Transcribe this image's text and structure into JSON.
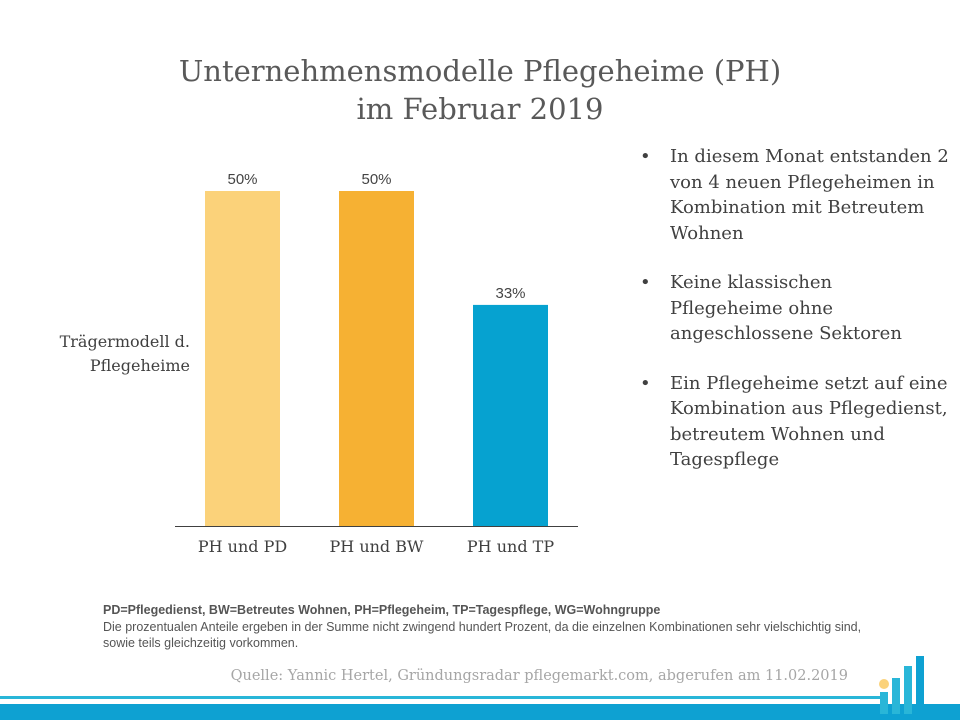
{
  "title": {
    "line1": "Unternehmensmodelle Pflegeheime (PH)",
    "line2": "im Februar 2019"
  },
  "chart_data": {
    "type": "bar",
    "title": "Unternehmensmodelle Pflegeheime (PH) im Februar 2019",
    "ylabel": "Trägermodell d. Pflegeheime",
    "categories": [
      "PH und PD",
      "PH und BW",
      "PH und TP"
    ],
    "values": [
      50,
      50,
      33
    ],
    "value_labels": [
      "50%",
      "50%",
      "33%"
    ],
    "colors": [
      "#fbd27a",
      "#f6b133",
      "#06a2d0"
    ],
    "ylim": [
      0,
      60
    ],
    "grid": false
  },
  "y_axis": {
    "line1": "Trägermodell d.",
    "line2": "Pflegeheime"
  },
  "bullets": {
    "marker": "•",
    "items": [
      "In diesem Monat entstanden 2 von 4 neuen Pflegeheimen in Kombination mit Betreutem Wohnen",
      "Keine klassischen Pflegeheime ohne angeschlossene Sektoren",
      "Ein Pflegeheime setzt auf eine Kombination aus Pflegedienst, betreutem Wohnen und Tagespflege"
    ]
  },
  "footnote": {
    "abbreviations": "PD=Pflegedienst, BW=Betreutes Wohnen, PH=Pflegeheim, TP=Tagespflege, WG=Wohngruppe",
    "note": "Die prozentualen Anteile ergeben in der Summe nicht zwingend hundert Prozent, da die einzelnen Kombinationen sehr vielschichtig sind, sowie teils gleichzeitig vorkommen."
  },
  "source": "Quelle: Yannic Hertel, Gründungsradar pflegemarkt.com, abgerufen am 11.02.2019",
  "logo": {
    "icon": "bar-chart-logo-icon",
    "colors": [
      "#fbd27a",
      "#29b6d8",
      "#0ea1d2"
    ]
  }
}
